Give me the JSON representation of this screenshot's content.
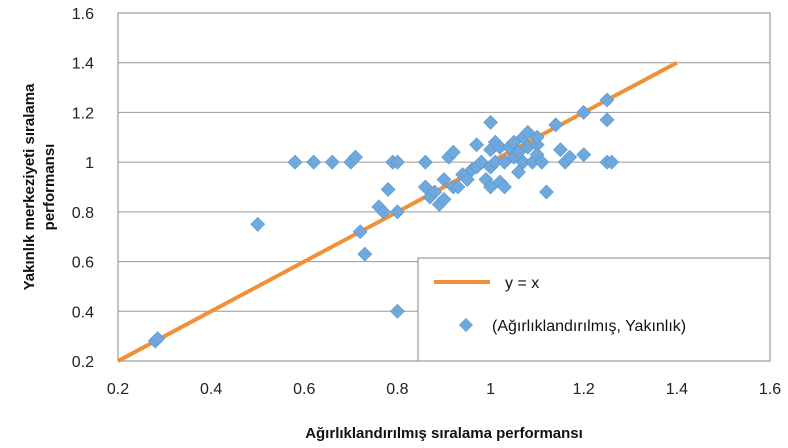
{
  "chart_data": {
    "type": "scatter",
    "xlabel": "Ağırlıklandırılmış sıralama performansı",
    "ylabel": "Yakınlık merkeziyeti sıralama performansı",
    "xlim": [
      0.2,
      1.6
    ],
    "ylim": [
      0.2,
      1.6
    ],
    "x_ticks": [
      "0.2",
      "0.4",
      "0.6",
      "0.8",
      "1",
      "1.2",
      "1.4",
      "1.6"
    ],
    "y_ticks": [
      "0.2",
      "0.4",
      "0.6",
      "0.8",
      "1",
      "1.2",
      "1.4",
      "1.6"
    ],
    "grid": "horizontal",
    "legend_position": "bottom-right",
    "colors": {
      "line": "#f0913a",
      "points": "#6fa8dc",
      "grid": "#9a9a9a"
    },
    "series": [
      {
        "name": "y = x",
        "kind": "line",
        "x": [
          0.2,
          1.4
        ],
        "y": [
          0.2,
          1.4
        ]
      },
      {
        "name": "(Ağırlıklandırılmış, Yakınlık)",
        "kind": "scatter",
        "x": [
          0.28,
          0.285,
          0.5,
          0.58,
          0.62,
          0.66,
          0.7,
          0.71,
          0.72,
          0.73,
          0.76,
          0.77,
          0.78,
          0.79,
          0.8,
          0.8,
          0.8,
          0.86,
          0.86,
          0.87,
          0.88,
          0.89,
          0.9,
          0.9,
          0.91,
          0.92,
          0.92,
          0.93,
          0.94,
          0.95,
          0.96,
          0.97,
          0.97,
          0.98,
          0.99,
          1.0,
          1.0,
          1.0,
          1.0,
          1.01,
          1.01,
          1.02,
          1.02,
          1.03,
          1.03,
          1.04,
          1.05,
          1.05,
          1.06,
          1.06,
          1.07,
          1.07,
          1.08,
          1.08,
          1.09,
          1.1,
          1.1,
          1.1,
          1.11,
          1.12,
          1.14,
          1.15,
          1.16,
          1.17,
          1.2,
          1.2,
          1.25,
          1.25,
          1.25,
          1.26
        ],
        "y": [
          0.28,
          0.29,
          0.75,
          1.0,
          1.0,
          1.0,
          1.0,
          1.02,
          0.72,
          0.63,
          0.82,
          0.8,
          0.89,
          1.0,
          1.0,
          0.8,
          0.4,
          1.0,
          0.9,
          0.86,
          0.88,
          0.83,
          0.93,
          0.85,
          1.02,
          0.9,
          1.04,
          0.9,
          0.95,
          0.93,
          0.97,
          0.98,
          1.07,
          1.0,
          0.93,
          1.16,
          0.9,
          1.05,
          0.98,
          1.0,
          1.08,
          0.92,
          1.06,
          1.0,
          0.9,
          1.06,
          1.02,
          1.08,
          1.04,
          0.96,
          1.1,
          1.0,
          1.06,
          1.12,
          1.0,
          1.07,
          1.03,
          1.1,
          1.0,
          0.88,
          1.15,
          1.05,
          1.0,
          1.02,
          1.2,
          1.03,
          1.25,
          1.17,
          1.0,
          1.0
        ]
      }
    ]
  }
}
